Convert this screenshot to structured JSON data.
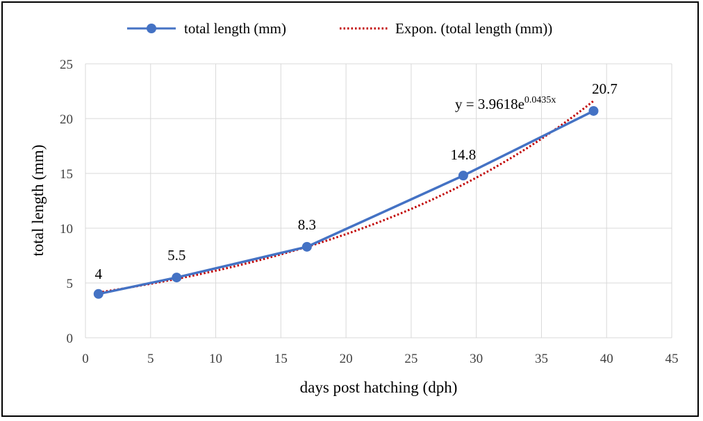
{
  "chart_data": {
    "type": "line",
    "title": "",
    "xlabel": "days post hatching (dph)",
    "ylabel": "total length (mm)",
    "xlim": [
      0,
      45
    ],
    "ylim": [
      0,
      25
    ],
    "xticks": [
      0,
      5,
      10,
      15,
      20,
      25,
      30,
      35,
      40,
      45
    ],
    "yticks": [
      0,
      5,
      10,
      15,
      20,
      25
    ],
    "grid": true,
    "legend_position": "top",
    "series": [
      {
        "name": "total length (mm)",
        "color": "#4472C4",
        "marker": "circle",
        "x": [
          1,
          7,
          17,
          29,
          39
        ],
        "y": [
          4,
          5.5,
          8.3,
          14.8,
          20.7
        ],
        "labels": [
          "4",
          "5.5",
          "8.3",
          "14.8",
          "20.7"
        ]
      }
    ],
    "trendline": {
      "name": "Expon. (total length (mm))",
      "color": "#C00000",
      "style": "dotted",
      "coefficient": 3.9618,
      "exponent": 0.0435,
      "x_range": [
        1,
        39
      ],
      "equation_base": "y = 3.9618e",
      "equation_exponent": "0.0435x"
    }
  }
}
